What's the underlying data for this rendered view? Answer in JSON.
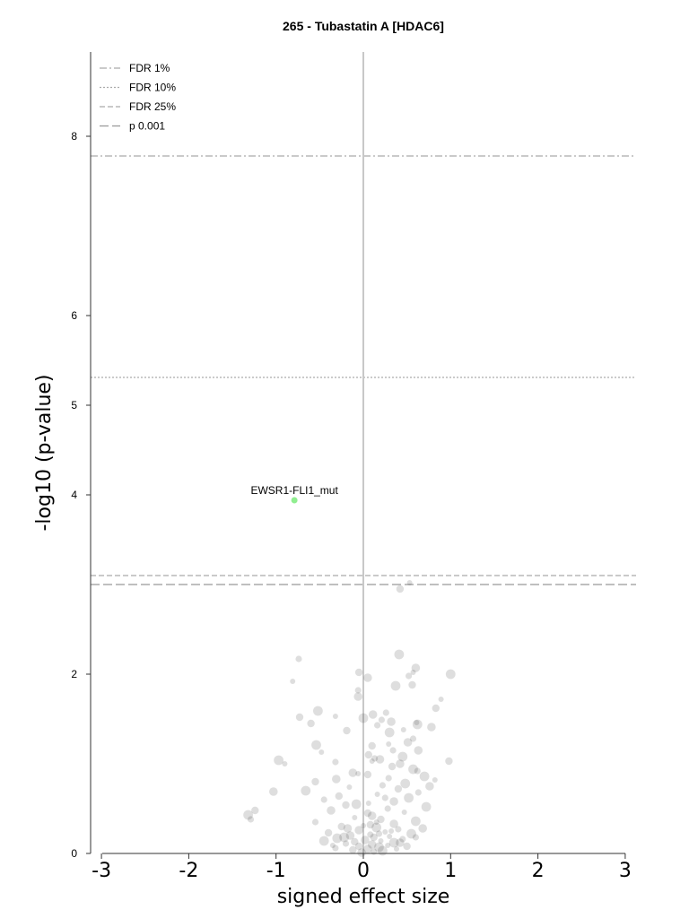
{
  "chart_data": {
    "type": "scatter",
    "title": "265 - Tubastatin A [HDAC6]",
    "xlabel": "signed effect size",
    "ylabel": "-log10 (p-value)",
    "xlim": [
      -3,
      3
    ],
    "ylim": [
      0,
      8
    ],
    "xticks": [
      -3,
      -2,
      -1,
      0,
      1,
      2,
      3
    ],
    "yticks": [
      0,
      2,
      4,
      5,
      6,
      8
    ],
    "vline_x": 0,
    "legend_position": "top-left",
    "thresholds": [
      {
        "name": "FDR 1%",
        "y": 7.78,
        "style": "dashdot",
        "color": "#aaaaaa"
      },
      {
        "name": "FDR 10%",
        "y": 5.31,
        "style": "dotted",
        "color": "#aaaaaa"
      },
      {
        "name": "FDR 25%",
        "y": 3.1,
        "style": "dashed-short",
        "color": "#aaaaaa"
      },
      {
        "name": "p 0.001",
        "y": 3.0,
        "style": "dashed-long",
        "color": "#999999"
      }
    ],
    "highlighted": [
      {
        "label": "EWSR1-FLI1_mut",
        "x": -0.79,
        "y": 3.94,
        "color": "#90ee90"
      }
    ],
    "background_points_color": "#000000",
    "background_points": [
      [
        0.53,
        3.02
      ],
      [
        0.42,
        2.95
      ],
      [
        0.41,
        2.22
      ],
      [
        -0.74,
        2.17
      ],
      [
        0.6,
        2.07
      ],
      [
        0.57,
        2.02
      ],
      [
        -0.05,
        2.02
      ],
      [
        1.0,
        2.0
      ],
      [
        0.52,
        1.98
      ],
      [
        0.05,
        1.96
      ],
      [
        -0.81,
        1.92
      ],
      [
        0.56,
        1.88
      ],
      [
        0.37,
        1.87
      ],
      [
        -0.06,
        1.82
      ],
      [
        -0.06,
        1.75
      ],
      [
        0.89,
        1.72
      ],
      [
        0.83,
        1.62
      ],
      [
        -0.52,
        1.59
      ],
      [
        0.26,
        1.57
      ],
      [
        0.11,
        1.55
      ],
      [
        -0.32,
        1.53
      ],
      [
        -0.73,
        1.52
      ],
      [
        0.0,
        1.51
      ],
      [
        0.21,
        1.49
      ],
      [
        0.32,
        1.47
      ],
      [
        0.61,
        1.46
      ],
      [
        -0.6,
        1.45
      ],
      [
        0.62,
        1.44
      ],
      [
        0.16,
        1.43
      ],
      [
        0.78,
        1.41
      ],
      [
        0.46,
        1.38
      ],
      [
        -0.19,
        1.37
      ],
      [
        0.3,
        1.35
      ],
      [
        0.57,
        1.28
      ],
      [
        0.51,
        1.24
      ],
      [
        0.29,
        1.22
      ],
      [
        0.1,
        1.2
      ],
      [
        -0.54,
        1.21
      ],
      [
        0.34,
        1.15
      ],
      [
        0.63,
        1.15
      ],
      [
        -0.48,
        1.13
      ],
      [
        0.06,
        1.1
      ],
      [
        0.45,
        1.08
      ],
      [
        0.13,
        1.06
      ],
      [
        0.19,
        1.05
      ],
      [
        0.1,
        1.03
      ],
      [
        0.98,
        1.03
      ],
      [
        -0.97,
        1.04
      ],
      [
        -0.32,
        1.02
      ],
      [
        0.42,
        1.0
      ],
      [
        -0.9,
        1.0
      ],
      [
        0.33,
        0.97
      ],
      [
        0.57,
        0.94
      ],
      [
        0.62,
        0.92
      ],
      [
        -0.12,
        0.9
      ],
      [
        -0.06,
        0.89
      ],
      [
        0.05,
        0.88
      ],
      [
        0.7,
        0.86
      ],
      [
        0.29,
        0.84
      ],
      [
        -0.31,
        0.83
      ],
      [
        0.82,
        0.82
      ],
      [
        -0.55,
        0.8
      ],
      [
        0.48,
        0.78
      ],
      [
        0.22,
        0.76
      ],
      [
        0.76,
        0.75
      ],
      [
        -0.16,
        0.74
      ],
      [
        0.4,
        0.72
      ],
      [
        -0.66,
        0.7
      ],
      [
        0.63,
        0.68
      ],
      [
        -1.03,
        0.69
      ],
      [
        0.16,
        0.66
      ],
      [
        -0.28,
        0.64
      ],
      [
        0.52,
        0.62
      ],
      [
        -0.45,
        0.6
      ],
      [
        0.35,
        0.58
      ],
      [
        0.06,
        0.56
      ],
      [
        -0.2,
        0.54
      ],
      [
        0.72,
        0.52
      ],
      [
        0.28,
        0.5
      ],
      [
        -0.37,
        0.48
      ],
      [
        0.47,
        0.46
      ],
      [
        -1.24,
        0.48
      ],
      [
        -1.32,
        0.43
      ],
      [
        -1.29,
        0.38
      ],
      [
        0.1,
        0.42
      ],
      [
        -0.1,
        0.4
      ],
      [
        0.2,
        0.38
      ],
      [
        0.6,
        0.36
      ],
      [
        -0.55,
        0.35
      ],
      [
        0.35,
        0.33
      ],
      [
        0.0,
        0.31
      ],
      [
        -0.25,
        0.3
      ],
      [
        0.15,
        0.29
      ],
      [
        0.4,
        0.27
      ],
      [
        -0.05,
        0.26
      ],
      [
        0.25,
        0.24
      ],
      [
        -0.4,
        0.23
      ],
      [
        0.55,
        0.22
      ],
      [
        0.08,
        0.21
      ],
      [
        -0.15,
        0.2
      ],
      [
        0.3,
        0.19
      ],
      [
        0.12,
        0.18
      ],
      [
        -0.3,
        0.17
      ],
      [
        0.45,
        0.16
      ],
      [
        0.02,
        0.15
      ],
      [
        0.2,
        0.14
      ],
      [
        -0.1,
        0.13
      ],
      [
        0.35,
        0.12
      ],
      [
        -0.2,
        0.11
      ],
      [
        0.1,
        0.1
      ],
      [
        0.28,
        0.09
      ],
      [
        -0.05,
        0.08
      ],
      [
        0.18,
        0.07
      ],
      [
        -0.32,
        0.06
      ],
      [
        0.05,
        0.05
      ],
      [
        0.38,
        0.05
      ],
      [
        -0.12,
        0.04
      ],
      [
        0.22,
        0.03
      ],
      [
        0.12,
        0.02
      ],
      [
        -0.02,
        0.01
      ],
      [
        0.15,
        0.35
      ],
      [
        0.05,
        0.45
      ],
      [
        -0.08,
        0.55
      ],
      [
        0.25,
        0.62
      ],
      [
        -0.18,
        0.28
      ],
      [
        0.32,
        0.25
      ],
      [
        0.08,
        0.32
      ],
      [
        -0.22,
        0.18
      ],
      [
        0.18,
        0.22
      ],
      [
        0.42,
        0.12
      ],
      [
        -0.35,
        0.09
      ],
      [
        0.5,
        0.08
      ],
      [
        -0.45,
        0.14
      ],
      [
        0.6,
        0.18
      ],
      [
        0.68,
        0.28
      ]
    ]
  }
}
